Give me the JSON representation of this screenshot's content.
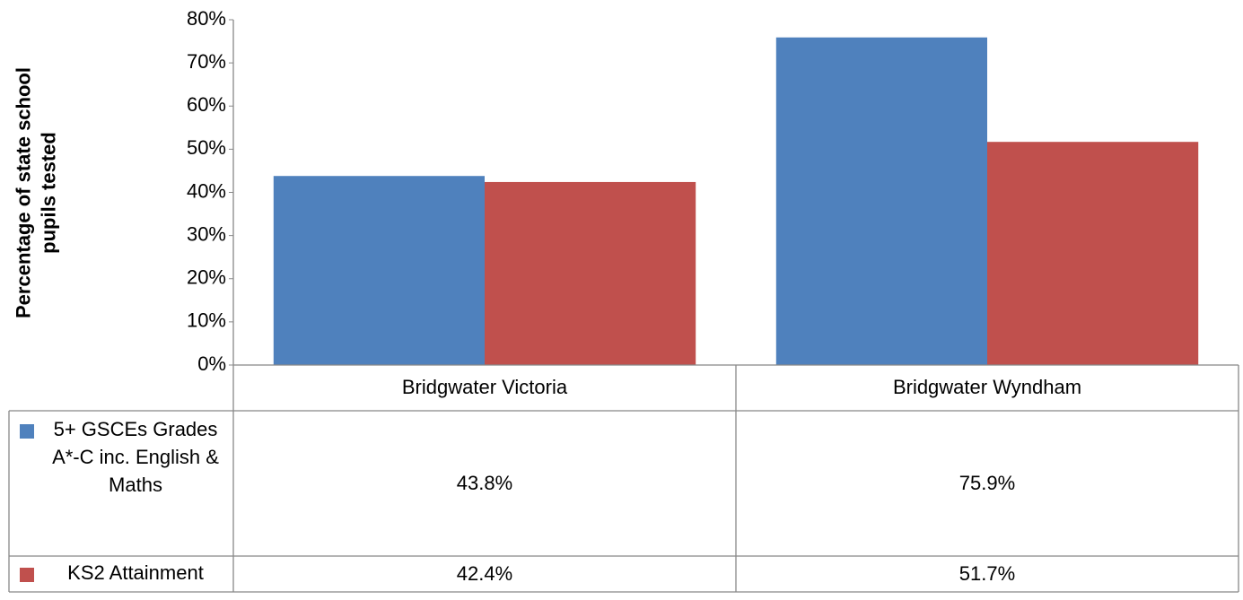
{
  "chart_data": {
    "type": "bar",
    "y_label": "Percentage of state school pupils tested",
    "categories": [
      "Bridgwater Victoria",
      "Bridgwater Wyndham"
    ],
    "series": [
      {
        "name": "5+ GSCEs Grades A*-C inc. English & Maths",
        "color": "#4f81bd",
        "values": [
          43.8,
          75.9
        ],
        "value_labels": [
          "43.8%",
          "75.9%"
        ]
      },
      {
        "name": "KS2 Attainment",
        "color": "#c0504d",
        "values": [
          42.4,
          51.7
        ],
        "value_labels": [
          "42.4%",
          "51.7%"
        ]
      }
    ],
    "ylim": [
      0,
      80
    ],
    "yticks": [
      {
        "value": 0,
        "label": "0%"
      },
      {
        "value": 10,
        "label": "10%"
      },
      {
        "value": 20,
        "label": "20%"
      },
      {
        "value": 30,
        "label": "30%"
      },
      {
        "value": 40,
        "label": "40%"
      },
      {
        "value": 50,
        "label": "50%"
      },
      {
        "value": 60,
        "label": "60%"
      },
      {
        "value": 70,
        "label": "70%"
      },
      {
        "value": 80,
        "label": "80%"
      }
    ],
    "grid": false,
    "legend": "table"
  }
}
